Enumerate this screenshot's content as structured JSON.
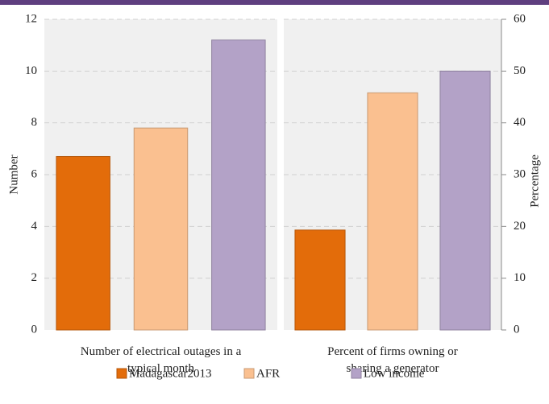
{
  "chart_data": {
    "type": "bar",
    "categories": [
      [
        "Number of electrical outages in a",
        "typical month"
      ],
      [
        "Percent of firms owning or",
        "sharing a generator"
      ]
    ],
    "category_axes": [
      "y",
      "y2"
    ],
    "series": [
      {
        "name": "Madagascar2013",
        "color": "#e36c0a",
        "values": [
          6.7,
          19.3
        ]
      },
      {
        "name": "AFR",
        "color": "#fac090",
        "values": [
          7.8,
          45.8
        ]
      },
      {
        "name": "Low income",
        "color": "#b3a2c7",
        "values": [
          11.2,
          50
        ]
      }
    ],
    "ylabel": "Number",
    "ylim": [
      0,
      12
    ],
    "yticks": [
      0,
      2,
      4,
      6,
      8,
      10,
      12
    ],
    "y2label": "Percentage",
    "y2lim": [
      0,
      60
    ],
    "y2ticks": [
      0,
      10,
      20,
      30,
      40,
      50,
      60
    ],
    "grid": true,
    "legend": "bottom"
  }
}
